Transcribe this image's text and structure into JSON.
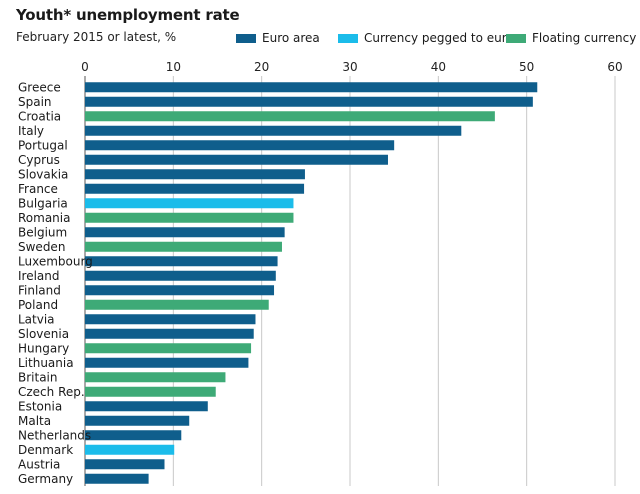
{
  "chart_data": {
    "type": "bar",
    "orientation": "horizontal",
    "title": "Youth* unemployment rate",
    "subtitle": "February 2015 or latest, %",
    "xlim": [
      0,
      60
    ],
    "x_ticks": [
      "0",
      "10",
      "20",
      "30",
      "40",
      "50",
      "60"
    ],
    "grid": true,
    "legend_position": "top",
    "legend": [
      {
        "key": "euro",
        "label": "Euro area",
        "color": "#0f5e8c"
      },
      {
        "key": "pegged",
        "label": "Currency pegged to euro",
        "color": "#1bbcea"
      },
      {
        "key": "floating",
        "label": "Floating currency",
        "color": "#3eaa77"
      }
    ],
    "categories": [
      "Greece",
      "Spain",
      "Croatia",
      "Italy",
      "Portugal",
      "Cyprus",
      "Slovakia",
      "France",
      "Bulgaria",
      "Romania",
      "Belgium",
      "Sweden",
      "Luxembourg",
      "Ireland",
      "Finland",
      "Poland",
      "Latvia",
      "Slovenia",
      "Hungary",
      "Lithuania",
      "Britain",
      "Czech Rep.",
      "Estonia",
      "Malta",
      "Netherlands",
      "Denmark",
      "Austria",
      "Germany"
    ],
    "values": [
      51.2,
      50.7,
      46.4,
      42.6,
      35.0,
      34.3,
      24.9,
      24.8,
      23.6,
      23.6,
      22.6,
      22.3,
      21.8,
      21.6,
      21.4,
      20.8,
      19.3,
      19.1,
      18.8,
      18.5,
      15.9,
      14.8,
      13.9,
      11.8,
      10.9,
      10.1,
      9.0,
      7.2
    ],
    "groups": [
      "euro",
      "euro",
      "floating",
      "euro",
      "euro",
      "euro",
      "euro",
      "euro",
      "pegged",
      "floating",
      "euro",
      "floating",
      "euro",
      "euro",
      "euro",
      "floating",
      "euro",
      "euro",
      "floating",
      "euro",
      "floating",
      "floating",
      "euro",
      "euro",
      "euro",
      "pegged",
      "euro",
      "euro"
    ]
  }
}
